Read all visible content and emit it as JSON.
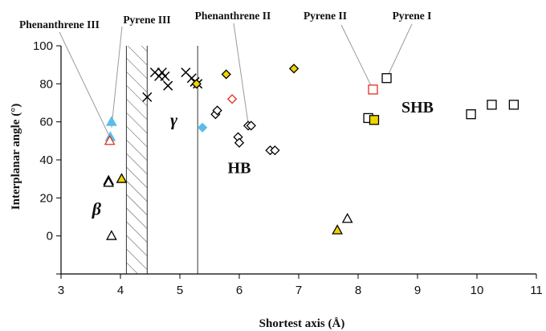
{
  "chart_data": {
    "type": "scatter",
    "xlabel": "Shortest axis (Å)",
    "ylabel": "Interplanar angle (°)",
    "xlim": [
      3,
      11
    ],
    "ylim": [
      -20,
      100
    ],
    "x_ticks": [
      "3",
      "4",
      "5",
      "6",
      "7",
      "8",
      "9",
      "10",
      "11"
    ],
    "y_ticks": [
      "0",
      "20",
      "40",
      "60",
      "80",
      "100"
    ],
    "grid": false,
    "legend": "none",
    "region_labels": [
      {
        "text": "β",
        "x": 3.6,
        "y": 11
      },
      {
        "text": "γ",
        "x": 4.9,
        "y": 58
      },
      {
        "text": "HB",
        "x": 6.0,
        "y": 33
      },
      {
        "text": "SHB",
        "x": 9.0,
        "y": 65
      }
    ],
    "boundaries": {
      "hatched_band": [
        4.1,
        4.45
      ],
      "line_at_x": 5.3
    },
    "annotations": [
      {
        "text": "Phenanthrene III",
        "target_x": 3.82,
        "target_y": 52
      },
      {
        "text": "Pyrene III",
        "target_x": 3.85,
        "target_y": 57
      },
      {
        "text": "Phenanthrene II",
        "target_x": 6.15,
        "target_y": 59
      },
      {
        "text": "Pyrene II",
        "target_x": 8.25,
        "target_y": 77
      },
      {
        "text": "Pyrene I",
        "target_x": 8.48,
        "target_y": 83
      }
    ],
    "series": [
      {
        "marker": "triangle-open",
        "color": "#000000",
        "points": [
          [
            3.8,
            29
          ],
          [
            3.8,
            28
          ],
          [
            3.85,
            0
          ],
          [
            7.82,
            9
          ]
        ]
      },
      {
        "marker": "triangle-filled",
        "color": "#f0d400",
        "points": [
          [
            4.02,
            30
          ],
          [
            7.65,
            3
          ]
        ]
      },
      {
        "marker": "triangle-filled",
        "color": "#5bbde8",
        "points": [
          [
            3.85,
            60
          ],
          [
            3.83,
            52
          ]
        ]
      },
      {
        "marker": "triangle-open",
        "color": "#e03020",
        "points": [
          [
            3.82,
            50
          ]
        ]
      },
      {
        "marker": "cross",
        "color": "#000000",
        "points": [
          [
            4.45,
            73
          ],
          [
            4.58,
            86
          ],
          [
            4.65,
            84
          ],
          [
            4.7,
            86
          ],
          [
            4.75,
            84
          ],
          [
            4.8,
            79
          ],
          [
            5.1,
            86
          ],
          [
            5.2,
            83
          ],
          [
            5.25,
            81
          ],
          [
            5.3,
            80
          ]
        ]
      },
      {
        "marker": "diamond-filled",
        "color": "#5bbde8",
        "points": [
          [
            5.38,
            57
          ]
        ]
      },
      {
        "marker": "diamond-filled",
        "color": "#f0d400",
        "points": [
          [
            5.28,
            80
          ],
          [
            5.78,
            85
          ],
          [
            6.92,
            88
          ]
        ]
      },
      {
        "marker": "diamond-open",
        "color": "#e03020",
        "points": [
          [
            5.88,
            72
          ]
        ]
      },
      {
        "marker": "diamond-open",
        "color": "#000000",
        "points": [
          [
            5.6,
            64
          ],
          [
            5.63,
            66
          ],
          [
            5.98,
            52
          ],
          [
            6.0,
            49
          ],
          [
            6.15,
            58
          ],
          [
            6.2,
            58
          ],
          [
            6.52,
            45
          ],
          [
            6.6,
            45
          ]
        ]
      },
      {
        "marker": "square-open",
        "color": "#e03020",
        "points": [
          [
            8.25,
            77
          ]
        ]
      },
      {
        "marker": "square-open",
        "color": "#000000",
        "points": [
          [
            8.48,
            83
          ],
          [
            8.17,
            62
          ],
          [
            9.9,
            64
          ],
          [
            10.25,
            69
          ],
          [
            10.62,
            69
          ]
        ]
      },
      {
        "marker": "square-filled",
        "color": "#f0d400",
        "points": [
          [
            8.27,
            61
          ]
        ]
      }
    ]
  }
}
